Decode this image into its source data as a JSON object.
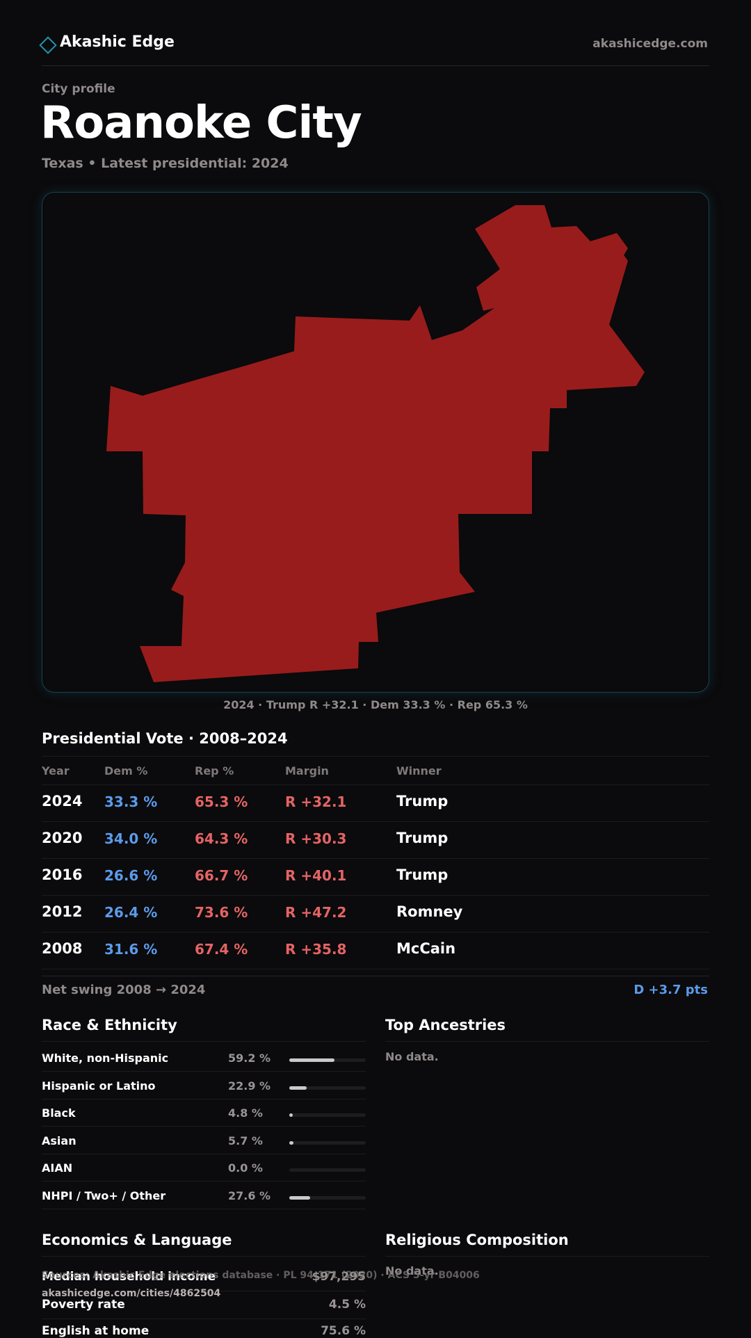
{
  "header": {
    "brand": "Akashic Edge",
    "domain": "akashicedge.com"
  },
  "profile": {
    "eyebrow": "City profile",
    "title": "Roanoke City",
    "subtitle": "Texas  • Latest presidential: 2024"
  },
  "map": {
    "fill_color": "#991c1c",
    "caption": "2024 · Trump  R +32.1 · Dem 33.3 % · Rep 65.3 %"
  },
  "votes": {
    "title": "Presidential Vote · 2008–2024",
    "columns": [
      "Year",
      "Dem %",
      "Rep %",
      "Margin",
      "Winner"
    ],
    "rows": [
      {
        "year": "2024",
        "dem": "33.3 %",
        "rep": "65.3 %",
        "margin": "R +32.1",
        "winner": "Trump"
      },
      {
        "year": "2020",
        "dem": "34.0 %",
        "rep": "64.3 %",
        "margin": "R +30.3",
        "winner": "Trump"
      },
      {
        "year": "2016",
        "dem": "26.6 %",
        "rep": "66.7 %",
        "margin": "R +40.1",
        "winner": "Trump"
      },
      {
        "year": "2012",
        "dem": "26.4 %",
        "rep": "73.6 %",
        "margin": "R +47.2",
        "winner": "Romney"
      },
      {
        "year": "2008",
        "dem": "31.6 %",
        "rep": "67.4 %",
        "margin": "R +35.8",
        "winner": "McCain"
      }
    ],
    "swing_label": "Net swing 2008 → 2024",
    "swing_value": "D +3.7 pts"
  },
  "race": {
    "title": "Race & Ethnicity",
    "rows": [
      {
        "label": "White, non-Hispanic",
        "pct": "59.2 %",
        "fraction": 0.592
      },
      {
        "label": "Hispanic or Latino",
        "pct": "22.9 %",
        "fraction": 0.229
      },
      {
        "label": "Black",
        "pct": "4.8 %",
        "fraction": 0.048
      },
      {
        "label": "Asian",
        "pct": "5.7 %",
        "fraction": 0.057
      },
      {
        "label": "AIAN",
        "pct": "0.0 %",
        "fraction": 0.0
      },
      {
        "label": "NHPI / Two+ / Other",
        "pct": "27.6 %",
        "fraction": 0.276
      }
    ]
  },
  "ancestries": {
    "title": "Top Ancestries",
    "empty": "No data."
  },
  "economics": {
    "title": "Economics & Language",
    "rows": [
      {
        "label": "Median household income",
        "value": "$97,295"
      },
      {
        "label": "Poverty rate",
        "value": "4.5 %"
      },
      {
        "label": "English at home",
        "value": "75.6 %"
      }
    ]
  },
  "religion": {
    "title": "Religious Composition",
    "empty": "No data."
  },
  "footer": {
    "sources": "Sources: Akashic Edge elections database · PL 94-171 (2020) · ACS 5-yr B04006",
    "url": "akashicedge.com/cities/4862504"
  }
}
